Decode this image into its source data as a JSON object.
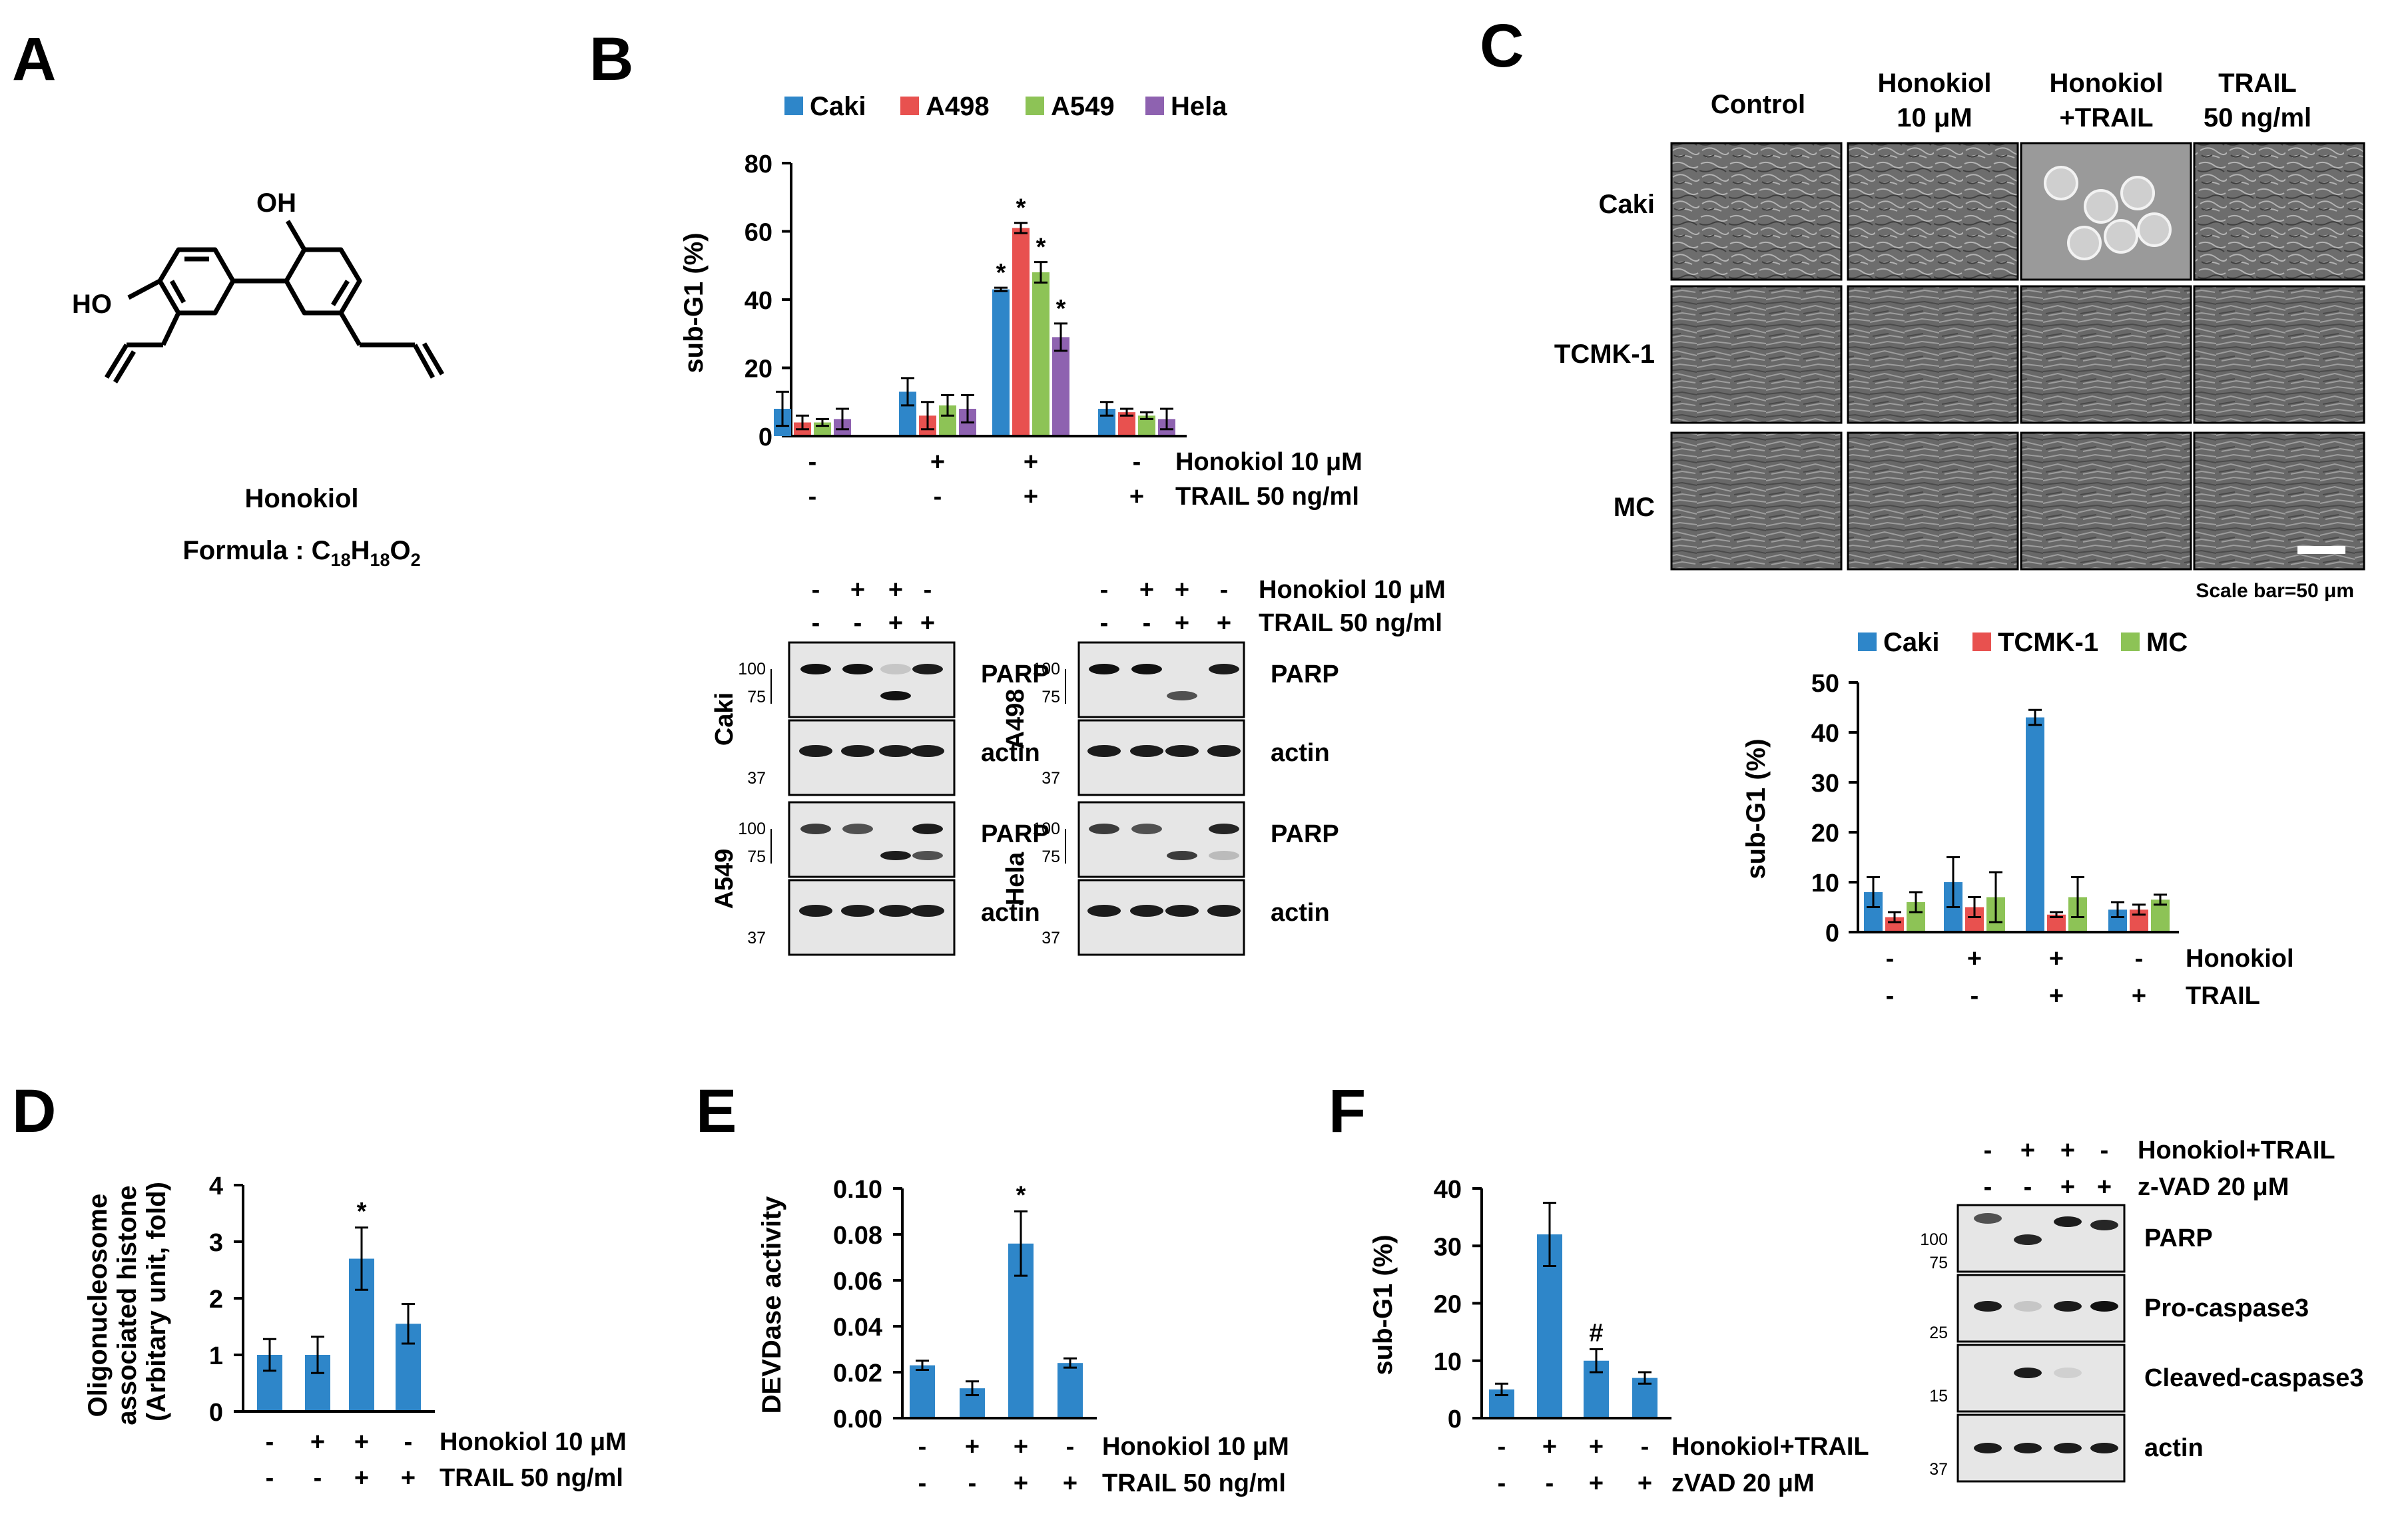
{
  "panel_labels": {
    "a": "A",
    "b": "B",
    "c": "C",
    "d": "D",
    "e": "E",
    "f": "F"
  },
  "compound": {
    "oh": "OH",
    "ho": "HO",
    "name": "Honokiol",
    "formula_prefix": "Formula : C",
    "sub1": "18",
    "h": "H",
    "sub2": "18",
    "o": "O",
    "sub3": "2"
  },
  "colors": {
    "blue": "#2E86C9",
    "red": "#E8514F",
    "green": "#8DC356",
    "purple": "#8E62B0"
  },
  "conditions": {
    "honokiol_10": "Honokiol 10 μM",
    "trail_50": "TRAIL 50 ng/ml",
    "honokiol": "Honokiol",
    "trail": "TRAIL",
    "honokiol_trail": "Honokiol+TRAIL",
    "zvad_20": "zVAD 20 μM",
    "z_vad_20": "z-VAD 20 μM",
    "signs_hon": [
      "-",
      "+",
      "+",
      "-"
    ],
    "signs_trail": [
      "-",
      "-",
      "+",
      "+"
    ]
  },
  "blots": {
    "cells": [
      "Caki",
      "A498",
      "A549",
      "Hela"
    ],
    "parp": "PARP",
    "actin": "actin",
    "pro_casp3": "Pro-caspase3",
    "cleaved_casp3": "Cleaved-caspase3",
    "mw_100": "100",
    "mw_75": "75",
    "mw_37": "37",
    "mw_25": "25",
    "mw_15": "15"
  },
  "micro": {
    "col_control": "Control",
    "col_hon_a": "Honokiol",
    "col_hon_b": "10 μM",
    "col_ht_a": "Honokiol",
    "col_ht_b": "+TRAIL",
    "col_tr_a": "TRAIL",
    "col_tr_b": "50 ng/ml",
    "rows": [
      "Caki",
      "TCMK-1",
      "MC"
    ],
    "scale": "Scale bar=50 μm"
  },
  "chart_data": [
    {
      "id": "B",
      "type": "bar",
      "ylabel": "sub-G1 (%)",
      "ylim": [
        0,
        80
      ],
      "yticks": [
        0,
        20,
        40,
        60,
        80
      ],
      "series": [
        {
          "name": "Caki",
          "color": "#2E86C9",
          "values": [
            8,
            13,
            43,
            8
          ],
          "errors": [
            5,
            4,
            0.5,
            2
          ]
        },
        {
          "name": "A498",
          "color": "#E8514F",
          "values": [
            4,
            6,
            61,
            7
          ],
          "errors": [
            2,
            4,
            1.5,
            1
          ]
        },
        {
          "name": "A549",
          "color": "#8DC356",
          "values": [
            4,
            9,
            48,
            6
          ],
          "errors": [
            1,
            3,
            3,
            1
          ]
        },
        {
          "name": "Hela",
          "color": "#8E62B0",
          "values": [
            5,
            8,
            29,
            5
          ],
          "errors": [
            3,
            4,
            4,
            3
          ]
        }
      ],
      "annotations": [
        "*",
        "*",
        "*",
        "*"
      ]
    },
    {
      "id": "C",
      "type": "bar",
      "ylabel": "sub-G1 (%)",
      "ylim": [
        0,
        50
      ],
      "yticks": [
        0,
        10,
        20,
        30,
        40,
        50
      ],
      "series": [
        {
          "name": "Caki",
          "color": "#2E86C9",
          "values": [
            8,
            10,
            43,
            4.5
          ],
          "errors": [
            3,
            5,
            1.5,
            1.5
          ]
        },
        {
          "name": "TCMK-1",
          "color": "#E8514F",
          "values": [
            3,
            5,
            3.5,
            4.5
          ],
          "errors": [
            1,
            2,
            0.5,
            1
          ]
        },
        {
          "name": "MC",
          "color": "#8DC356",
          "values": [
            6,
            7,
            7,
            6.5
          ],
          "errors": [
            2,
            5,
            4,
            1
          ]
        }
      ]
    },
    {
      "id": "D",
      "type": "bar",
      "ylabel_lines": [
        "Oligonucleosome",
        "associated histone",
        "(Arbitary unit, fold)"
      ],
      "ylim": [
        0,
        4
      ],
      "yticks": [
        0,
        1,
        2,
        3,
        4
      ],
      "values": [
        1.0,
        1.0,
        2.7,
        1.55
      ],
      "errors": [
        0.28,
        0.32,
        0.55,
        0.35
      ],
      "annotation": "*"
    },
    {
      "id": "E",
      "type": "bar",
      "ylabel": "DEVDase activity",
      "ylim": [
        0,
        0.1
      ],
      "yticks": [
        "0.00",
        "0.02",
        "0.04",
        "0.06",
        "0.08",
        "0.10"
      ],
      "values": [
        0.023,
        0.013,
        0.076,
        0.024
      ],
      "errors": [
        0.002,
        0.003,
        0.014,
        0.002
      ],
      "annotation": "*"
    },
    {
      "id": "F",
      "type": "bar",
      "ylabel": "sub-G1 (%)",
      "ylim": [
        0,
        40
      ],
      "yticks": [
        0,
        10,
        20,
        30,
        40
      ],
      "values": [
        5,
        32,
        10,
        7
      ],
      "errors": [
        1,
        5.5,
        2,
        1
      ],
      "annotation": "#"
    }
  ]
}
